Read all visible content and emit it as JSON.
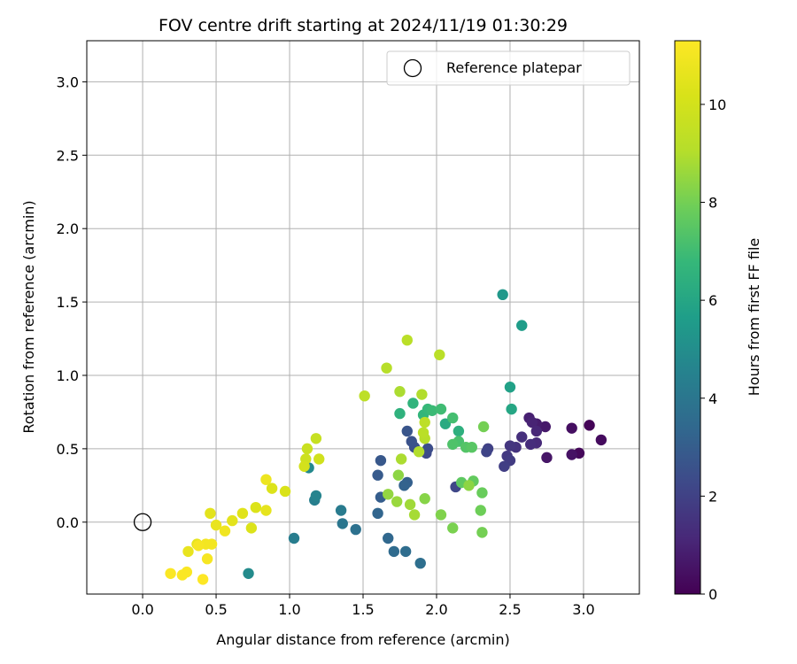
{
  "chart_data": {
    "type": "scatter",
    "title": "FOV centre drift starting at 2024/11/19 01:30:29",
    "xlabel": "Angular distance from reference (arcmin)",
    "ylabel": "Rotation from reference (arcmin)",
    "xlim": [
      -0.38,
      3.38
    ],
    "ylim": [
      -0.49,
      3.28
    ],
    "xticks": [
      0.0,
      0.5,
      1.0,
      1.5,
      2.0,
      2.5,
      3.0
    ],
    "xtick_labels": [
      "0.0",
      "0.5",
      "1.0",
      "1.5",
      "2.0",
      "2.5",
      "3.0"
    ],
    "yticks": [
      0.0,
      0.5,
      1.0,
      1.5,
      2.0,
      2.5,
      3.0
    ],
    "ytick_labels": [
      "0.0",
      "0.5",
      "1.0",
      "1.5",
      "2.0",
      "2.5",
      "3.0"
    ],
    "grid": true,
    "colormap": "viridis",
    "colorbar": {
      "label": "Hours from first FF file",
      "range": [
        0,
        11.3
      ],
      "ticks": [
        0,
        2,
        4,
        6,
        8,
        10
      ],
      "tick_labels": [
        "0",
        "2",
        "4",
        "6",
        "8",
        "10"
      ]
    },
    "legend": {
      "position": "top-right",
      "entries": [
        "Reference platepar"
      ]
    },
    "reference_point": {
      "x": 0.0,
      "y": 0.0,
      "name": "Reference platepar",
      "marker": "open-circle"
    },
    "points": [
      {
        "x": 3.04,
        "y": 0.66,
        "c": 0.1
      },
      {
        "x": 2.97,
        "y": 0.47,
        "c": 0.2
      },
      {
        "x": 3.12,
        "y": 0.56,
        "c": 0.3
      },
      {
        "x": 2.92,
        "y": 0.64,
        "c": 0.4
      },
      {
        "x": 2.92,
        "y": 0.46,
        "c": 0.5
      },
      {
        "x": 2.75,
        "y": 0.44,
        "c": 0.6
      },
      {
        "x": 2.74,
        "y": 0.65,
        "c": 0.7
      },
      {
        "x": 2.68,
        "y": 0.67,
        "c": 0.8
      },
      {
        "x": 2.63,
        "y": 0.71,
        "c": 0.9
      },
      {
        "x": 2.65,
        "y": 0.68,
        "c": 1.0
      },
      {
        "x": 2.68,
        "y": 0.62,
        "c": 1.1
      },
      {
        "x": 2.68,
        "y": 0.54,
        "c": 1.2
      },
      {
        "x": 2.64,
        "y": 0.53,
        "c": 1.3
      },
      {
        "x": 2.58,
        "y": 0.58,
        "c": 1.4
      },
      {
        "x": 2.54,
        "y": 0.51,
        "c": 1.5
      },
      {
        "x": 2.5,
        "y": 0.52,
        "c": 1.6
      },
      {
        "x": 2.48,
        "y": 0.45,
        "c": 1.7
      },
      {
        "x": 2.5,
        "y": 0.42,
        "c": 1.8
      },
      {
        "x": 2.46,
        "y": 0.38,
        "c": 1.9
      },
      {
        "x": 2.35,
        "y": 0.5,
        "c": 2.0
      },
      {
        "x": 2.34,
        "y": 0.48,
        "c": 2.1
      },
      {
        "x": 2.13,
        "y": 0.24,
        "c": 2.2
      },
      {
        "x": 1.93,
        "y": 0.47,
        "c": 2.3
      },
      {
        "x": 1.94,
        "y": 0.5,
        "c": 2.4
      },
      {
        "x": 1.85,
        "y": 0.51,
        "c": 2.5
      },
      {
        "x": 1.83,
        "y": 0.55,
        "c": 2.6
      },
      {
        "x": 1.8,
        "y": 0.62,
        "c": 2.7
      },
      {
        "x": 1.62,
        "y": 0.42,
        "c": 2.8
      },
      {
        "x": 1.6,
        "y": 0.32,
        "c": 2.9
      },
      {
        "x": 1.62,
        "y": 0.17,
        "c": 3.0
      },
      {
        "x": 1.8,
        "y": 0.27,
        "c": 3.1
      },
      {
        "x": 1.78,
        "y": 0.25,
        "c": 3.2
      },
      {
        "x": 1.6,
        "y": 0.06,
        "c": 3.3
      },
      {
        "x": 1.67,
        "y": -0.11,
        "c": 3.4
      },
      {
        "x": 1.71,
        "y": -0.2,
        "c": 3.5
      },
      {
        "x": 1.79,
        "y": -0.2,
        "c": 3.6
      },
      {
        "x": 1.89,
        "y": -0.28,
        "c": 3.7
      },
      {
        "x": 1.45,
        "y": -0.05,
        "c": 3.8
      },
      {
        "x": 1.36,
        "y": -0.01,
        "c": 4.0
      },
      {
        "x": 1.35,
        "y": 0.08,
        "c": 4.2
      },
      {
        "x": 1.03,
        "y": -0.11,
        "c": 4.3
      },
      {
        "x": 1.17,
        "y": 0.15,
        "c": 4.4
      },
      {
        "x": 1.18,
        "y": 0.18,
        "c": 4.6
      },
      {
        "x": 1.13,
        "y": 0.37,
        "c": 4.8
      },
      {
        "x": 0.72,
        "y": -0.35,
        "c": 4.9
      },
      {
        "x": 2.45,
        "y": 1.55,
        "c": 5.4
      },
      {
        "x": 2.58,
        "y": 1.34,
        "c": 5.6
      },
      {
        "x": 2.5,
        "y": 0.92,
        "c": 5.8
      },
      {
        "x": 2.51,
        "y": 0.77,
        "c": 6.0
      },
      {
        "x": 2.06,
        "y": 0.67,
        "c": 6.2
      },
      {
        "x": 2.15,
        "y": 0.62,
        "c": 6.4
      },
      {
        "x": 1.75,
        "y": 0.74,
        "c": 6.5
      },
      {
        "x": 1.84,
        "y": 0.81,
        "c": 6.6
      },
      {
        "x": 1.91,
        "y": 0.73,
        "c": 6.7
      },
      {
        "x": 1.94,
        "y": 0.77,
        "c": 6.8
      },
      {
        "x": 1.97,
        "y": 0.76,
        "c": 6.9
      },
      {
        "x": 2.03,
        "y": 0.77,
        "c": 7.0
      },
      {
        "x": 2.11,
        "y": 0.71,
        "c": 7.1
      },
      {
        "x": 2.15,
        "y": 0.55,
        "c": 7.2
      },
      {
        "x": 2.11,
        "y": 0.53,
        "c": 7.3
      },
      {
        "x": 2.2,
        "y": 0.51,
        "c": 7.4
      },
      {
        "x": 2.24,
        "y": 0.51,
        "c": 7.5
      },
      {
        "x": 2.17,
        "y": 0.27,
        "c": 7.6
      },
      {
        "x": 2.25,
        "y": 0.28,
        "c": 7.7
      },
      {
        "x": 2.31,
        "y": 0.2,
        "c": 7.8
      },
      {
        "x": 2.3,
        "y": 0.08,
        "c": 7.9
      },
      {
        "x": 2.31,
        "y": -0.07,
        "c": 8.0
      },
      {
        "x": 2.11,
        "y": -0.04,
        "c": 8.1
      },
      {
        "x": 2.03,
        "y": 0.05,
        "c": 8.2
      },
      {
        "x": 1.92,
        "y": 0.16,
        "c": 8.3
      },
      {
        "x": 1.74,
        "y": 0.32,
        "c": 8.4
      },
      {
        "x": 1.67,
        "y": 0.19,
        "c": 8.5
      },
      {
        "x": 1.73,
        "y": 0.14,
        "c": 8.6
      },
      {
        "x": 1.82,
        "y": 0.12,
        "c": 8.7
      },
      {
        "x": 1.85,
        "y": 0.05,
        "c": 8.8
      },
      {
        "x": 1.76,
        "y": 0.43,
        "c": 8.9
      },
      {
        "x": 1.88,
        "y": 0.48,
        "c": 9.0
      },
      {
        "x": 1.92,
        "y": 0.57,
        "c": 9.1
      },
      {
        "x": 1.91,
        "y": 0.61,
        "c": 9.2
      },
      {
        "x": 1.92,
        "y": 0.68,
        "c": 9.3
      },
      {
        "x": 2.32,
        "y": 0.65,
        "c": 8.0
      },
      {
        "x": 2.22,
        "y": 0.25,
        "c": 8.4
      },
      {
        "x": 1.9,
        "y": 0.87,
        "c": 9.0
      },
      {
        "x": 1.75,
        "y": 0.89,
        "c": 8.9
      },
      {
        "x": 1.66,
        "y": 1.05,
        "c": 9.1
      },
      {
        "x": 1.8,
        "y": 1.24,
        "c": 9.2
      },
      {
        "x": 2.02,
        "y": 1.14,
        "c": 9.2
      },
      {
        "x": 1.51,
        "y": 0.86,
        "c": 9.3
      },
      {
        "x": 1.18,
        "y": 0.57,
        "c": 9.6
      },
      {
        "x": 1.12,
        "y": 0.5,
        "c": 9.7
      },
      {
        "x": 1.11,
        "y": 0.43,
        "c": 9.8
      },
      {
        "x": 1.2,
        "y": 0.43,
        "c": 9.9
      },
      {
        "x": 1.1,
        "y": 0.38,
        "c": 10.0
      },
      {
        "x": 0.97,
        "y": 0.21,
        "c": 10.2
      },
      {
        "x": 0.88,
        "y": 0.23,
        "c": 10.3
      },
      {
        "x": 0.77,
        "y": 0.1,
        "c": 10.3
      },
      {
        "x": 0.74,
        "y": -0.04,
        "c": 10.3
      },
      {
        "x": 0.68,
        "y": 0.06,
        "c": 10.4
      },
      {
        "x": 0.61,
        "y": 0.01,
        "c": 10.5
      },
      {
        "x": 0.46,
        "y": 0.06,
        "c": 10.5
      },
      {
        "x": 0.84,
        "y": 0.08,
        "c": 10.6
      },
      {
        "x": 0.84,
        "y": 0.29,
        "c": 10.8
      },
      {
        "x": 0.5,
        "y": -0.02,
        "c": 10.7
      },
      {
        "x": 0.56,
        "y": -0.06,
        "c": 10.9
      },
      {
        "x": 0.47,
        "y": -0.15,
        "c": 11.0
      },
      {
        "x": 0.43,
        "y": -0.15,
        "c": 11.0
      },
      {
        "x": 0.37,
        "y": -0.15,
        "c": 10.6
      },
      {
        "x": 0.38,
        "y": -0.16,
        "c": 11.1
      },
      {
        "x": 0.31,
        "y": -0.2,
        "c": 10.7
      },
      {
        "x": 0.44,
        "y": -0.25,
        "c": 11.1
      },
      {
        "x": 0.3,
        "y": -0.34,
        "c": 11.2
      },
      {
        "x": 0.27,
        "y": -0.36,
        "c": 11.2
      },
      {
        "x": 0.19,
        "y": -0.35,
        "c": 11.2
      },
      {
        "x": 0.41,
        "y": -0.39,
        "c": 11.3
      }
    ]
  }
}
